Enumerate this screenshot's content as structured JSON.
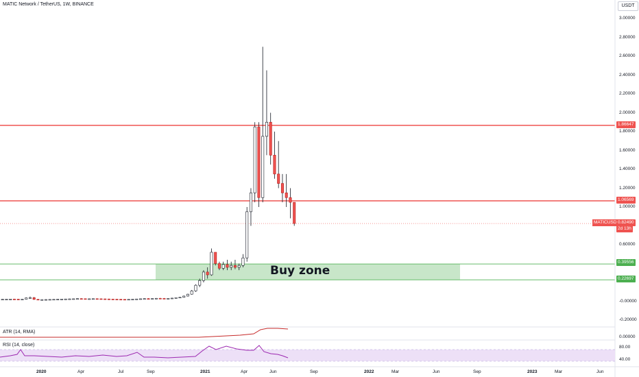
{
  "header": {
    "title": "MATIC Network / TetherUS, 1W, BINANCE",
    "currency": "USDT"
  },
  "indicators": {
    "atr_label": "ATR (14, RMA)",
    "atr_value_label": "0.00000",
    "rsi_label": "RSI (14, close)",
    "rsi_upper": "80.00",
    "rsi_lower": "40.00"
  },
  "annotations": {
    "buy_zone_label": "Buy zone",
    "symbol_tag": "MATICUSDT",
    "current_price": "0.82490",
    "countdown": "2d 13h",
    "resistance_high": "1.86647",
    "resistance_low": "1.06569",
    "zone_top": "0.39556",
    "zone_bottom": "0.22697"
  },
  "colors": {
    "bull": "#ffffff",
    "bear": "#ef5350",
    "wick": "#131722",
    "resistance": "#ef5350",
    "zone_fill": "#c8e6c9",
    "zone_line": "#66bb6a",
    "rsi_line": "#9c27b0",
    "rsi_band": "#ede0f7",
    "atr_line": "#c62828"
  },
  "chart_data": {
    "type": "candlestick",
    "symbol": "MATICUSDT",
    "interval": "1W",
    "ylim": [
      -0.2,
      3.0
    ],
    "y_ticks": [
      "3.00000",
      "2.80000",
      "2.60000",
      "2.40000",
      "2.20000",
      "2.00000",
      "1.80000",
      "1.60000",
      "1.40000",
      "1.20000",
      "1.00000",
      "0.60000",
      "-0.00000",
      "-0.20000"
    ],
    "x_ticks": [
      "2020",
      "Apr",
      "Jul",
      "Sep",
      "2021",
      "Apr",
      "Jun",
      "Sep",
      "2022",
      "Mar",
      "Jun",
      "Sep",
      "2023",
      "Mar",
      "Jun"
    ],
    "horizontal_levels": [
      1.86647,
      1.06569
    ],
    "buy_zone": {
      "top": 0.39556,
      "bottom": 0.22697
    },
    "current_price": 0.8249,
    "candles_ohlc": [
      [
        0.02,
        0.023,
        0.018,
        0.021
      ],
      [
        0.021,
        0.024,
        0.019,
        0.022
      ],
      [
        0.022,
        0.025,
        0.02,
        0.023
      ],
      [
        0.023,
        0.026,
        0.021,
        0.022
      ],
      [
        0.022,
        0.025,
        0.02,
        0.021
      ],
      [
        0.021,
        0.024,
        0.019,
        0.022
      ],
      [
        0.022,
        0.04,
        0.02,
        0.035
      ],
      [
        0.035,
        0.05,
        0.03,
        0.038
      ],
      [
        0.038,
        0.045,
        0.015,
        0.02
      ],
      [
        0.02,
        0.024,
        0.012,
        0.016
      ],
      [
        0.016,
        0.02,
        0.013,
        0.017
      ],
      [
        0.017,
        0.02,
        0.015,
        0.018
      ],
      [
        0.018,
        0.021,
        0.016,
        0.019
      ],
      [
        0.019,
        0.022,
        0.017,
        0.02
      ],
      [
        0.02,
        0.024,
        0.018,
        0.022
      ],
      [
        0.022,
        0.025,
        0.02,
        0.023
      ],
      [
        0.023,
        0.026,
        0.021,
        0.024
      ],
      [
        0.024,
        0.027,
        0.022,
        0.025
      ],
      [
        0.025,
        0.028,
        0.022,
        0.026
      ],
      [
        0.026,
        0.03,
        0.024,
        0.028
      ],
      [
        0.028,
        0.031,
        0.025,
        0.027
      ],
      [
        0.027,
        0.029,
        0.024,
        0.025
      ],
      [
        0.025,
        0.028,
        0.023,
        0.026
      ],
      [
        0.026,
        0.029,
        0.024,
        0.027
      ],
      [
        0.027,
        0.03,
        0.025,
        0.026
      ],
      [
        0.026,
        0.029,
        0.024,
        0.025
      ],
      [
        0.025,
        0.027,
        0.022,
        0.024
      ],
      [
        0.024,
        0.026,
        0.022,
        0.023
      ],
      [
        0.023,
        0.025,
        0.021,
        0.022
      ],
      [
        0.022,
        0.024,
        0.02,
        0.021
      ],
      [
        0.021,
        0.023,
        0.019,
        0.02
      ],
      [
        0.02,
        0.022,
        0.018,
        0.019
      ],
      [
        0.019,
        0.022,
        0.017,
        0.02
      ],
      [
        0.02,
        0.024,
        0.018,
        0.022
      ],
      [
        0.022,
        0.026,
        0.02,
        0.024
      ],
      [
        0.024,
        0.028,
        0.022,
        0.026
      ],
      [
        0.026,
        0.03,
        0.024,
        0.028
      ],
      [
        0.028,
        0.032,
        0.025,
        0.027
      ],
      [
        0.027,
        0.031,
        0.024,
        0.029
      ],
      [
        0.029,
        0.034,
        0.026,
        0.031
      ],
      [
        0.031,
        0.035,
        0.027,
        0.03
      ],
      [
        0.03,
        0.034,
        0.026,
        0.028
      ],
      [
        0.028,
        0.033,
        0.025,
        0.03
      ],
      [
        0.03,
        0.036,
        0.027,
        0.033
      ],
      [
        0.033,
        0.04,
        0.03,
        0.038
      ],
      [
        0.038,
        0.045,
        0.034,
        0.042
      ],
      [
        0.042,
        0.06,
        0.038,
        0.055
      ],
      [
        0.055,
        0.08,
        0.05,
        0.075
      ],
      [
        0.075,
        0.12,
        0.07,
        0.11
      ],
      [
        0.11,
        0.18,
        0.1,
        0.17
      ],
      [
        0.17,
        0.24,
        0.15,
        0.22
      ],
      [
        0.22,
        0.33,
        0.2,
        0.31
      ],
      [
        0.31,
        0.36,
        0.24,
        0.28
      ],
      [
        0.28,
        0.56,
        0.27,
        0.52
      ],
      [
        0.52,
        0.52,
        0.38,
        0.4
      ],
      [
        0.4,
        0.42,
        0.33,
        0.35
      ],
      [
        0.35,
        0.42,
        0.33,
        0.39
      ],
      [
        0.39,
        0.44,
        0.33,
        0.36
      ],
      [
        0.36,
        0.42,
        0.33,
        0.38
      ],
      [
        0.38,
        0.44,
        0.34,
        0.36
      ],
      [
        0.36,
        0.4,
        0.33,
        0.38
      ],
      [
        0.38,
        0.5,
        0.36,
        0.46
      ],
      [
        0.46,
        1.0,
        0.42,
        0.95
      ],
      [
        0.95,
        1.2,
        0.8,
        1.15
      ],
      [
        1.15,
        1.9,
        1.05,
        1.85
      ],
      [
        1.85,
        1.9,
        1.0,
        1.1
      ],
      [
        1.1,
        2.7,
        1.05,
        1.75
      ],
      [
        1.75,
        2.45,
        1.55,
        1.9
      ],
      [
        1.9,
        2.0,
        1.45,
        1.55
      ],
      [
        1.55,
        1.8,
        1.3,
        1.35
      ],
      [
        1.35,
        1.7,
        1.2,
        1.25
      ],
      [
        1.25,
        1.35,
        1.05,
        1.15
      ],
      [
        1.15,
        1.35,
        1.0,
        1.1
      ],
      [
        1.1,
        1.2,
        0.88,
        1.05
      ],
      [
        1.05,
        1.05,
        0.8,
        0.825
      ]
    ]
  }
}
